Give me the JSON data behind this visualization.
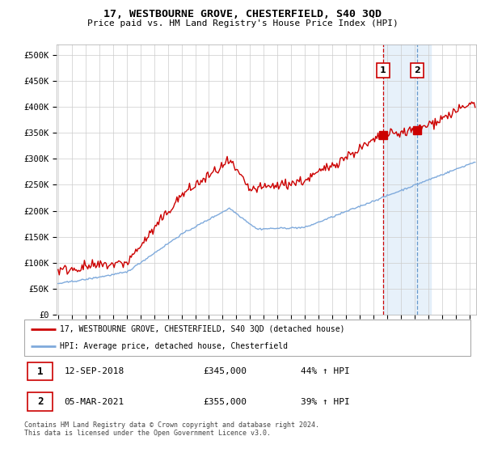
{
  "title": "17, WESTBOURNE GROVE, CHESTERFIELD, S40 3QD",
  "subtitle": "Price paid vs. HM Land Registry's House Price Index (HPI)",
  "ylabel_ticks": [
    "£0",
    "£50K",
    "£100K",
    "£150K",
    "£200K",
    "£250K",
    "£300K",
    "£350K",
    "£400K",
    "£450K",
    "£500K"
  ],
  "ytick_values": [
    0,
    50000,
    100000,
    150000,
    200000,
    250000,
    300000,
    350000,
    400000,
    450000,
    500000
  ],
  "ylim": [
    0,
    520000
  ],
  "hpi_color": "#7faadc",
  "price_color": "#cc0000",
  "sale1_date_num": 2018.71,
  "sale1_price": 345000,
  "sale2_date_num": 2021.17,
  "sale2_price": 355000,
  "legend_property": "17, WESTBOURNE GROVE, CHESTERFIELD, S40 3QD (detached house)",
  "legend_hpi": "HPI: Average price, detached house, Chesterfield",
  "table_rows": [
    {
      "num": "1",
      "date": "12-SEP-2018",
      "price": "£345,000",
      "hpi": "44% ↑ HPI"
    },
    {
      "num": "2",
      "date": "05-MAR-2021",
      "price": "£355,000",
      "hpi": "39% ↑ HPI"
    }
  ],
  "footnote": "Contains HM Land Registry data © Crown copyright and database right 2024.\nThis data is licensed under the Open Government Licence v3.0.",
  "bg_color": "#ffffff",
  "plot_bg_color": "#ffffff",
  "grid_color": "#cccccc",
  "shade_color": "#d0e4f7",
  "xmin": 1994.9,
  "xmax": 2025.5
}
